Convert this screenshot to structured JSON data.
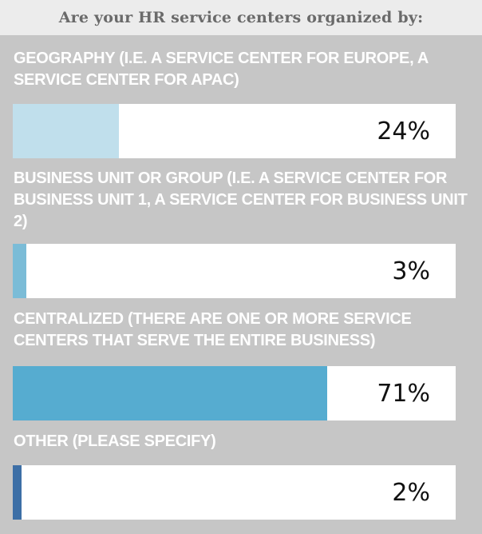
{
  "chart_data": {
    "type": "bar",
    "title": "Are your HR service centers organized by:",
    "categories": [
      "GEOGRAPHY (I.E. A SERVICE CENTER FOR EUROPE, A SERVICE CENTER FOR APAC)",
      "BUSINESS UNIT OR GROUP (I.E. A SERVICE CENTER FOR BUSINESS UNIT 1, A SERVICE CENTER FOR BUSINESS UNIT 2)",
      "CENTRALIZED (THERE ARE ONE OR MORE SERVICE CENTERS THAT SERVE THE ENTIRE BUSINESS)",
      "OTHER (PLEASE SPECIFY)"
    ],
    "values": [
      24,
      3,
      71,
      2
    ],
    "value_labels": [
      "24%",
      "3%",
      "71%",
      "2%"
    ],
    "ylim": [
      0,
      100
    ],
    "colors": [
      "#c0dfec",
      "#7bbcd7",
      "#56acd0",
      "#3d6fa6"
    ]
  }
}
